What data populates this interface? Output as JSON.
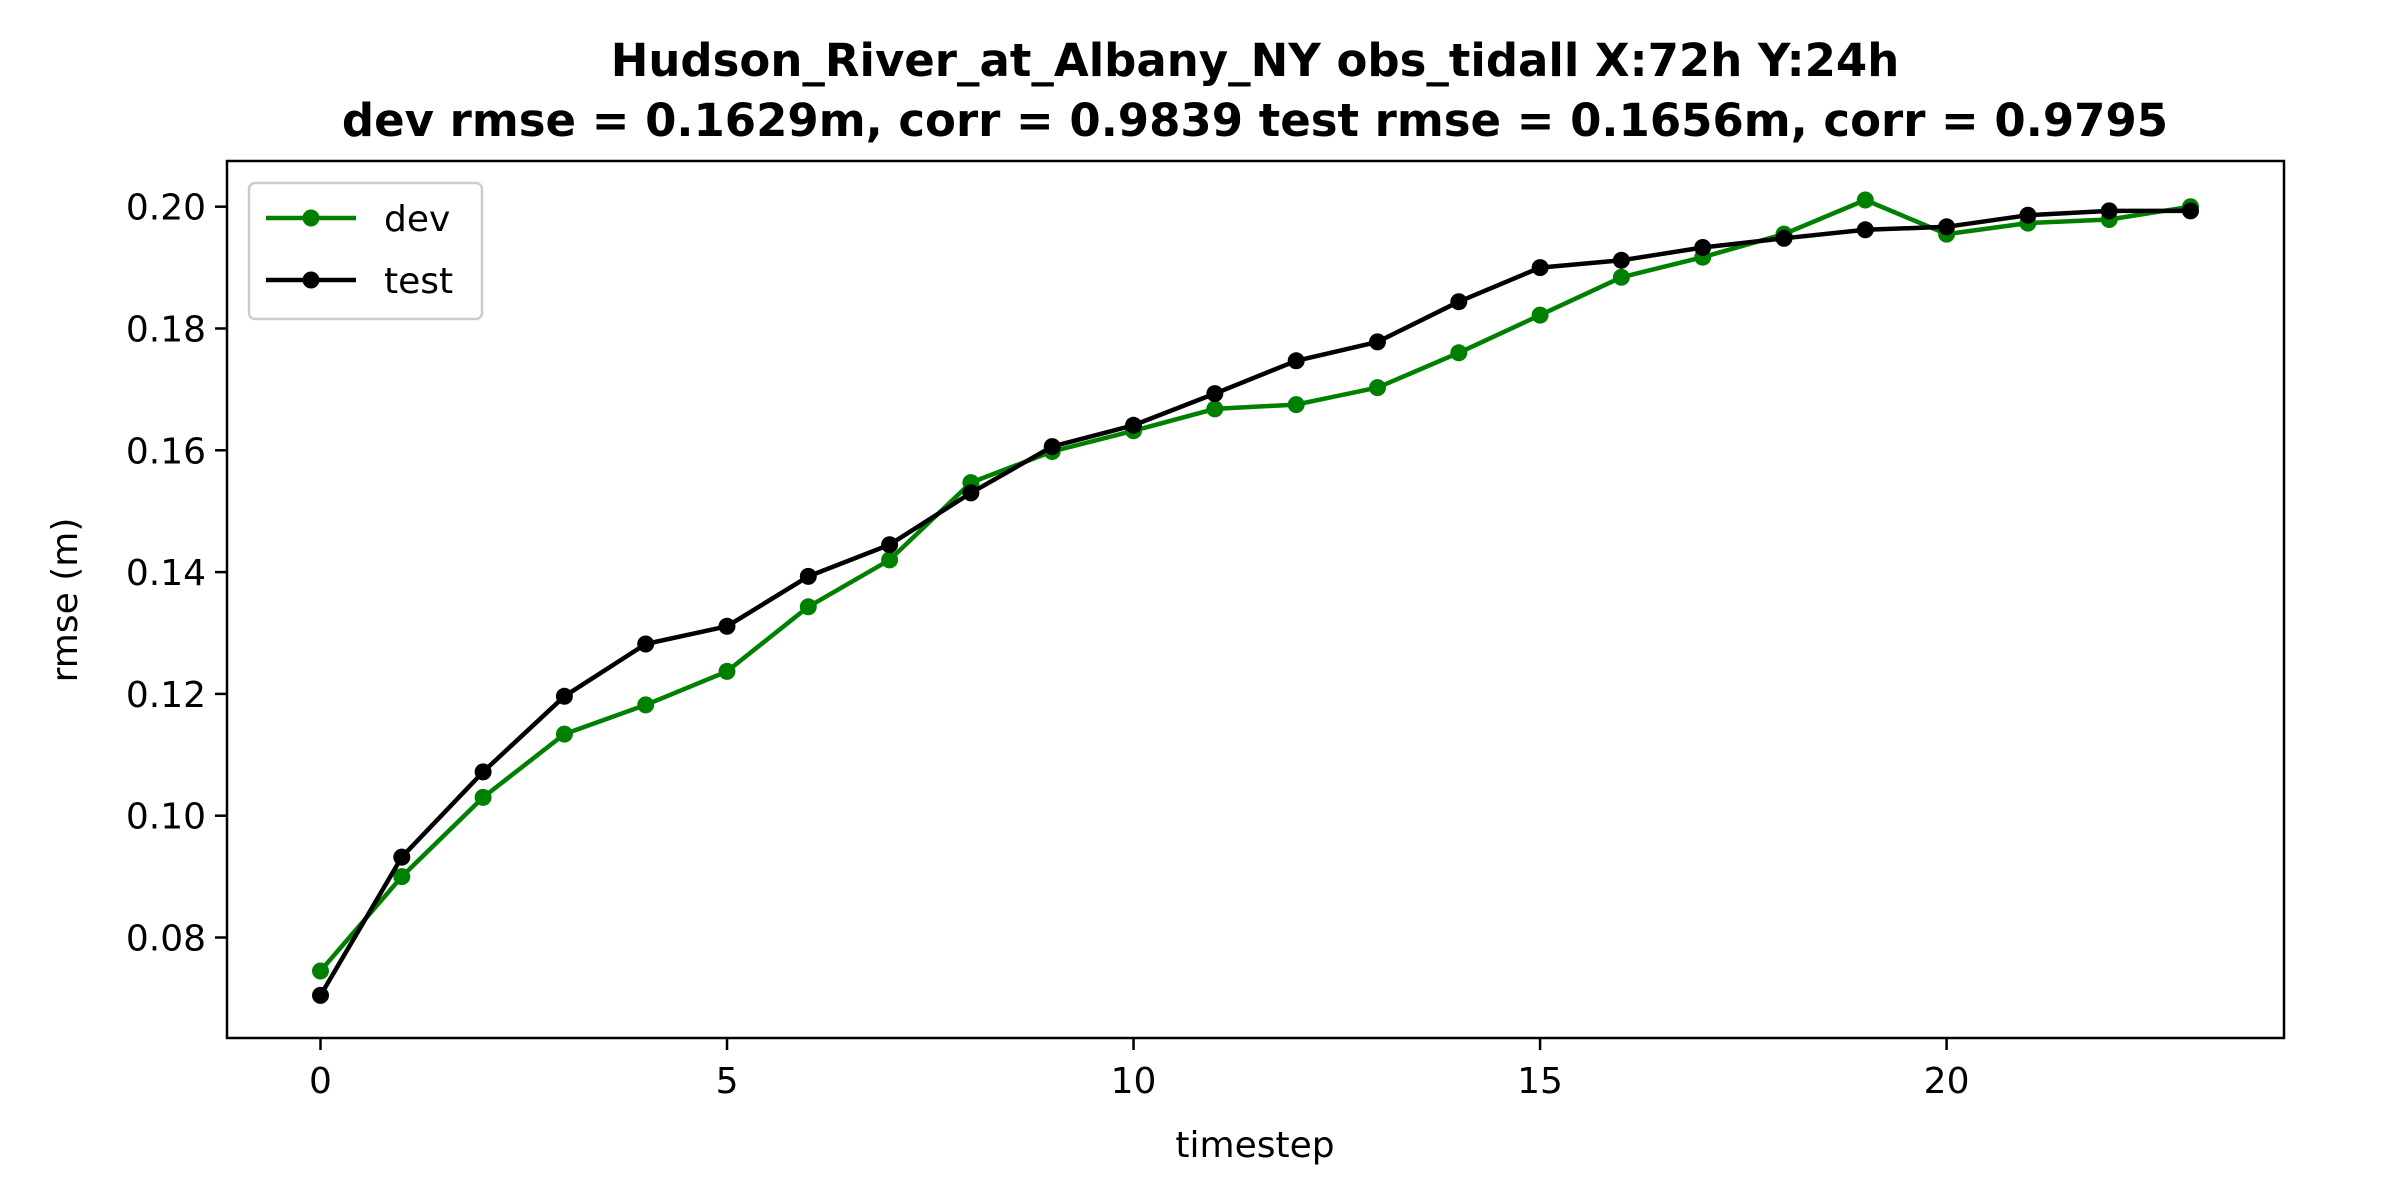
{
  "chart_data": {
    "type": "line",
    "title_lines": [
      "Hudson_River_at_Albany_NY   obs_tidall   X:72h   Y:24h",
      "dev rmse = 0.1629m, corr = 0.9839   test rmse = 0.1656m, corr = 0.9795"
    ],
    "xlabel": "timestep",
    "ylabel": "rmse (m)",
    "xlim": [
      -1.15,
      24.15
    ],
    "ylim": [
      0.0635,
      0.2075
    ],
    "xticks": [
      0,
      5,
      10,
      15,
      20
    ],
    "yticks": [
      0.08,
      0.1,
      0.12,
      0.14,
      0.16,
      0.18,
      0.2
    ],
    "ytick_labels": [
      "0.08",
      "0.10",
      "0.12",
      "0.14",
      "0.16",
      "0.18",
      "0.20"
    ],
    "grid": false,
    "legend_position": "upper-left",
    "x": [
      0,
      1,
      2,
      3,
      4,
      5,
      6,
      7,
      8,
      9,
      10,
      11,
      12,
      13,
      14,
      15,
      16,
      17,
      18,
      19,
      20,
      21,
      22,
      23
    ],
    "series": [
      {
        "name": "dev",
        "color": "#008000",
        "values": [
          0.0745,
          0.09,
          0.103,
          0.1134,
          0.1182,
          0.1237,
          0.1343,
          0.142,
          0.1547,
          0.1598,
          0.1632,
          0.1668,
          0.1675,
          0.1703,
          0.176,
          0.1822,
          0.1884,
          0.1917,
          0.1955,
          0.2011,
          0.1955,
          0.1973,
          0.1979,
          0.2
        ]
      },
      {
        "name": "test",
        "color": "#000000",
        "values": [
          0.0705,
          0.0932,
          0.1072,
          0.1196,
          0.1282,
          0.1311,
          0.1393,
          0.1445,
          0.153,
          0.1606,
          0.1641,
          0.1693,
          0.1747,
          0.1778,
          0.1844,
          0.19,
          0.1912,
          0.1933,
          0.1948,
          0.1962,
          0.1967,
          0.1986,
          0.1993,
          0.1993
        ]
      }
    ]
  }
}
